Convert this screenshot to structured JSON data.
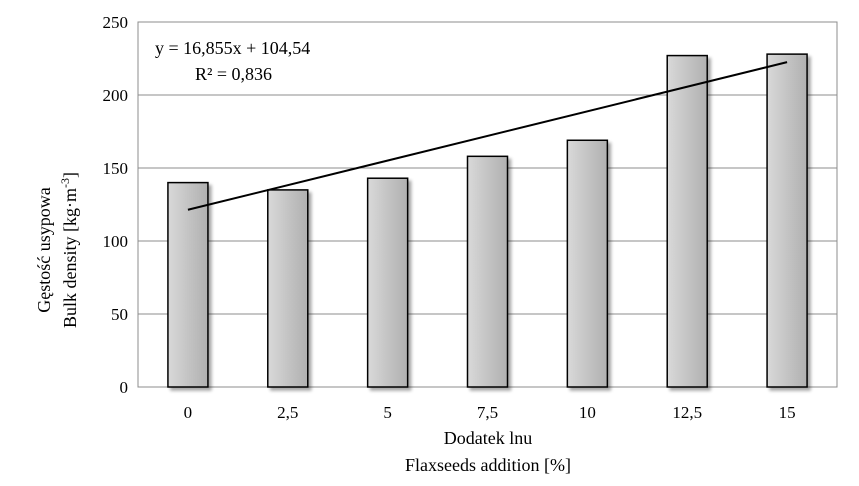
{
  "chart_data": {
    "type": "bar",
    "categories": [
      "0",
      "2,5",
      "5",
      "7,5",
      "10",
      "12,5",
      "15"
    ],
    "values": [
      140,
      135,
      143,
      158,
      169,
      227,
      228
    ],
    "ylim": [
      0,
      250
    ],
    "yticks": [
      "0",
      "50",
      "100",
      "150",
      "200",
      "250"
    ],
    "grid": true,
    "xlabel_line1": "Dodatek lnu",
    "xlabel_line2": "Flaxseeds addition [%]",
    "ylabel_line1": "Gęstość usypowa",
    "ylabel_line2_text": "Bulk density  [kg·m",
    "ylabel_line2_sup": "-3",
    "ylabel_line2_close": "]",
    "trendline": {
      "slope": 16.855,
      "intercept": 104.54,
      "equation": "y = 16,855x + 104,54",
      "r2": "R² = 0,836"
    },
    "colors": {
      "bar_fill": "#c8c8c8",
      "bar_stroke": "#000000",
      "grid": "#8c8c8c",
      "trend": "#000000"
    }
  }
}
